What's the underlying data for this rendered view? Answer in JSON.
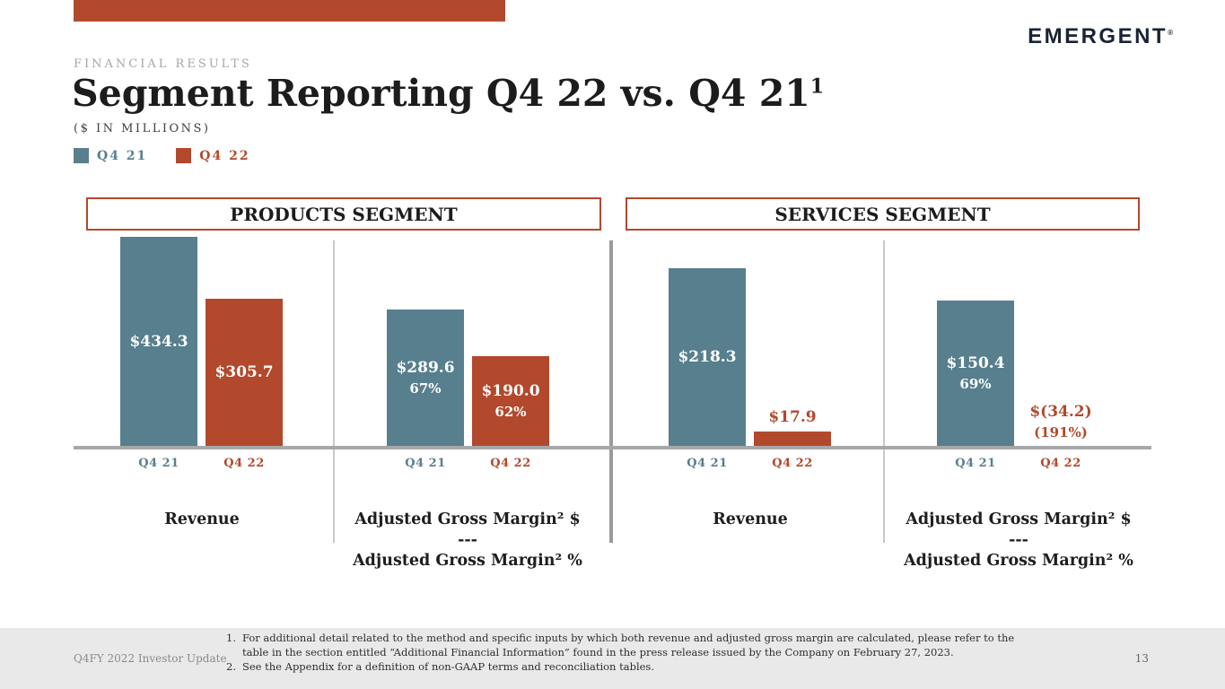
{
  "brand": {
    "logo_text": "EMERGENT",
    "logo_mark": "®"
  },
  "header": {
    "eyebrow": "FINANCIAL RESULTS",
    "title_main": "Segment Reporting Q4 22 vs. Q4 21",
    "title_sup": "1",
    "subtitle": "($ IN MILLIONS)"
  },
  "legend": [
    {
      "label": "Q4 21"
    },
    {
      "label": "Q4 22"
    }
  ],
  "colors": {
    "q4_21": "#577f8d",
    "q4_22": "#b2492c",
    "accent": "#b2492c"
  },
  "segments": [
    {
      "title": "PRODUCTS SEGMENT"
    },
    {
      "title": "SERVICES SEGMENT"
    }
  ],
  "chart_data": [
    {
      "type": "bar",
      "segment": "PRODUCTS SEGMENT",
      "metric": "Revenue",
      "unit": "$ in millions",
      "categories": [
        "Q4 21",
        "Q4 22"
      ],
      "values": [
        434.3,
        305.7
      ],
      "labels": [
        "$434.3",
        "$305.7"
      ]
    },
    {
      "type": "bar",
      "segment": "PRODUCTS SEGMENT",
      "metric": "Adjusted Gross Margin² $ / Adjusted Gross Margin² %",
      "unit": "$ in millions",
      "categories": [
        "Q4 21",
        "Q4 22"
      ],
      "values": [
        289.6,
        190.0
      ],
      "labels": [
        "$289.6",
        "$190.0"
      ],
      "pct_labels": [
        "67%",
        "62%"
      ]
    },
    {
      "type": "bar",
      "segment": "SERVICES SEGMENT",
      "metric": "Revenue",
      "unit": "$ in millions",
      "categories": [
        "Q4 21",
        "Q4 22"
      ],
      "values": [
        218.3,
        17.9
      ],
      "labels": [
        "$218.3",
        "$17.9"
      ]
    },
    {
      "type": "bar",
      "segment": "SERVICES SEGMENT",
      "metric": "Adjusted Gross Margin² $ / Adjusted Gross Margin² %",
      "unit": "$ in millions",
      "categories": [
        "Q4 21",
        "Q4 22"
      ],
      "values": [
        150.4,
        -34.2
      ],
      "labels": [
        "$150.4",
        "$(34.2)"
      ],
      "pct_labels": [
        "69%",
        "(191%)"
      ]
    }
  ],
  "category_labels": {
    "revenue": "Revenue",
    "agm_line1": "Adjusted Gross Margin² $",
    "agm_sep": "---",
    "agm_line2": "Adjusted Gross Margin² %"
  },
  "footer": {
    "left": "Q4FY 2022 Investor Update",
    "page": "13",
    "notes": [
      {
        "num": "1.",
        "text": "For additional detail related to the method and specific inputs by which both revenue and adjusted gross margin are calculated, please refer to the table in the section entitled “Additional Financial Information” found in the press release issued by the Company on February 27, 2023."
      },
      {
        "num": "2.",
        "text": "See the Appendix for a definition of non-GAAP terms and reconciliation tables."
      }
    ]
  }
}
